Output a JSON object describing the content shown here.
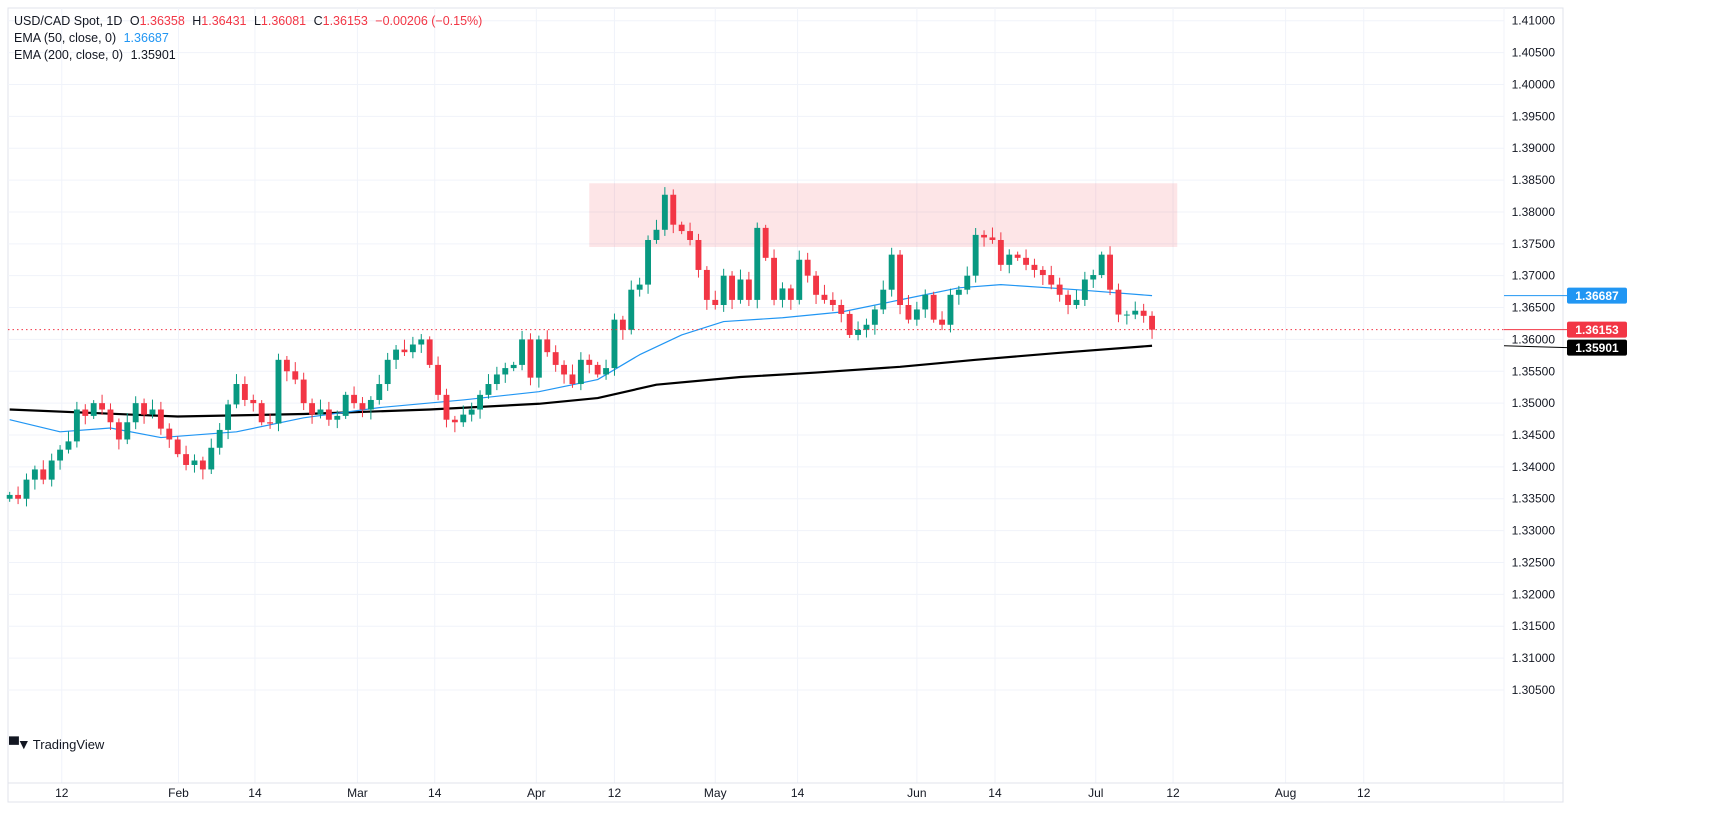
{
  "legend": {
    "symbol": "USD/CAD Spot, 1D",
    "open_label": "O",
    "open": "1.36358",
    "high_label": "H",
    "high": "1.36431",
    "low_label": "L",
    "low": "1.36081",
    "close_label": "C",
    "close": "1.36153",
    "change": "−0.00206 (−0.15%)",
    "ema50_label": "EMA (50, close, 0)",
    "ema50_value": "1.36687",
    "ema200_label": "EMA (200, close, 0)",
    "ema200_value": "1.35901"
  },
  "branding": {
    "name": "TradingView"
  },
  "colors": {
    "up": "#089981",
    "down": "#f23645",
    "ema50": "#2196f3",
    "ema200": "#000000",
    "zone": "#f23645"
  },
  "chart_data": {
    "type": "candlestick",
    "title": "USD/CAD Spot, 1D",
    "ylim": [
      1.2904,
      1.412
    ],
    "xlim_bars": [
      -0.2,
      177.9
    ],
    "y_ticks": [
      "1.41000",
      "1.40500",
      "1.40000",
      "1.39500",
      "1.39000",
      "1.38500",
      "1.38000",
      "1.37500",
      "1.37000",
      "1.36500",
      "1.36000",
      "1.35500",
      "1.35000",
      "1.34500",
      "1.34000",
      "1.33500",
      "1.33000",
      "1.32500",
      "1.32000",
      "1.31500",
      "1.31000",
      "1.30500"
    ],
    "x_ticks": [
      {
        "label": "12",
        "bar": 6.2
      },
      {
        "label": "Feb",
        "bar": 20.1
      },
      {
        "label": "14",
        "bar": 29.2
      },
      {
        "label": "Mar",
        "bar": 41.4
      },
      {
        "label": "14",
        "bar": 50.6
      },
      {
        "label": "Apr",
        "bar": 62.7
      },
      {
        "label": "12",
        "bar": 72
      },
      {
        "label": "May",
        "bar": 84
      },
      {
        "label": "14",
        "bar": 93.8
      },
      {
        "label": "Jun",
        "bar": 108
      },
      {
        "label": "14",
        "bar": 117.3
      },
      {
        "label": "Jul",
        "bar": 129.3
      },
      {
        "label": "12",
        "bar": 138.5
      },
      {
        "label": "Aug",
        "bar": 151.9
      },
      {
        "label": "12",
        "bar": 161.2
      }
    ],
    "first_open": 1.335,
    "wick": 0.0012,
    "close": [
      1.3356,
      1.335,
      1.338,
      1.3396,
      1.338,
      1.341,
      1.3427,
      1.344,
      1.349,
      1.348,
      1.35,
      1.349,
      1.347,
      1.3443,
      1.347,
      1.35,
      1.3482,
      1.349,
      1.346,
      1.3443,
      1.342,
      1.3403,
      1.341,
      1.3396,
      1.343,
      1.3458,
      1.3498,
      1.353,
      1.3505,
      1.35,
      1.347,
      1.3468,
      1.3568,
      1.355,
      1.3537,
      1.35,
      1.3482,
      1.349,
      1.3474,
      1.348,
      1.3513,
      1.35,
      1.349,
      1.3505,
      1.353,
      1.3568,
      1.3584,
      1.358,
      1.3592,
      1.36,
      1.356,
      1.3513,
      1.3474,
      1.347,
      1.3482,
      1.349,
      1.3513,
      1.353,
      1.3545,
      1.3555,
      1.356,
      1.36,
      1.354,
      1.36,
      1.358,
      1.356,
      1.3545,
      1.353,
      1.3568,
      1.356,
      1.3545,
      1.3555,
      1.3631,
      1.3615,
      1.3678,
      1.3686,
      1.3756,
      1.3772,
      1.3827,
      1.378,
      1.377,
      1.3756,
      1.3709,
      1.3662,
      1.3654,
      1.37,
      1.3662,
      1.3694,
      1.3662,
      1.3775,
      1.3728,
      1.3662,
      1.368,
      1.3662,
      1.3725,
      1.37,
      1.367,
      1.3662,
      1.3654,
      1.364,
      1.3607,
      1.3615,
      1.3623,
      1.3647,
      1.3678,
      1.3733,
      1.3654,
      1.3631,
      1.3647,
      1.367,
      1.3631,
      1.3623,
      1.367,
      1.3678,
      1.37,
      1.3764,
      1.376,
      1.3756,
      1.3717,
      1.3733,
      1.3728,
      1.3717,
      1.3709,
      1.3701,
      1.3686,
      1.367,
      1.3654,
      1.3662,
      1.3694,
      1.3701,
      1.3733,
      1.3678,
      1.3639,
      1.3639,
      1.3645,
      1.3637,
      1.36153
    ],
    "ema50": [
      [
        0,
        1.3474
      ],
      [
        6,
        1.3455
      ],
      [
        12,
        1.3461
      ],
      [
        18,
        1.3446
      ],
      [
        27,
        1.3455
      ],
      [
        35,
        1.3477
      ],
      [
        44,
        1.3493
      ],
      [
        54,
        1.3505
      ],
      [
        63,
        1.3518
      ],
      [
        70,
        1.3537
      ],
      [
        75,
        1.3576
      ],
      [
        80,
        1.3607
      ],
      [
        85,
        1.3628
      ],
      [
        92,
        1.3634
      ],
      [
        99,
        1.3643
      ],
      [
        106,
        1.3662
      ],
      [
        113,
        1.3681
      ],
      [
        118,
        1.3686
      ],
      [
        127,
        1.3678
      ],
      [
        136,
        1.36687
      ]
    ],
    "ema200": [
      [
        0,
        1.349
      ],
      [
        20,
        1.3479
      ],
      [
        35,
        1.3483
      ],
      [
        50,
        1.349
      ],
      [
        63,
        1.3499
      ],
      [
        70,
        1.3508
      ],
      [
        77,
        1.3529
      ],
      [
        87,
        1.3541
      ],
      [
        96,
        1.3548
      ],
      [
        106,
        1.3557
      ],
      [
        115,
        1.3568
      ],
      [
        125,
        1.3579
      ],
      [
        136,
        1.35901
      ]
    ],
    "resistance_zone": {
      "from_bar": 69,
      "to_bar": 139,
      "low": 1.3745,
      "high": 1.3845
    },
    "price_labels": [
      {
        "value": 1.36687,
        "text": "1.36687",
        "series": "ema50"
      },
      {
        "value": 1.36153,
        "text": "1.36153",
        "series": "last"
      },
      {
        "value": 1.35901,
        "text": "1.35901",
        "series": "ema200"
      }
    ]
  }
}
